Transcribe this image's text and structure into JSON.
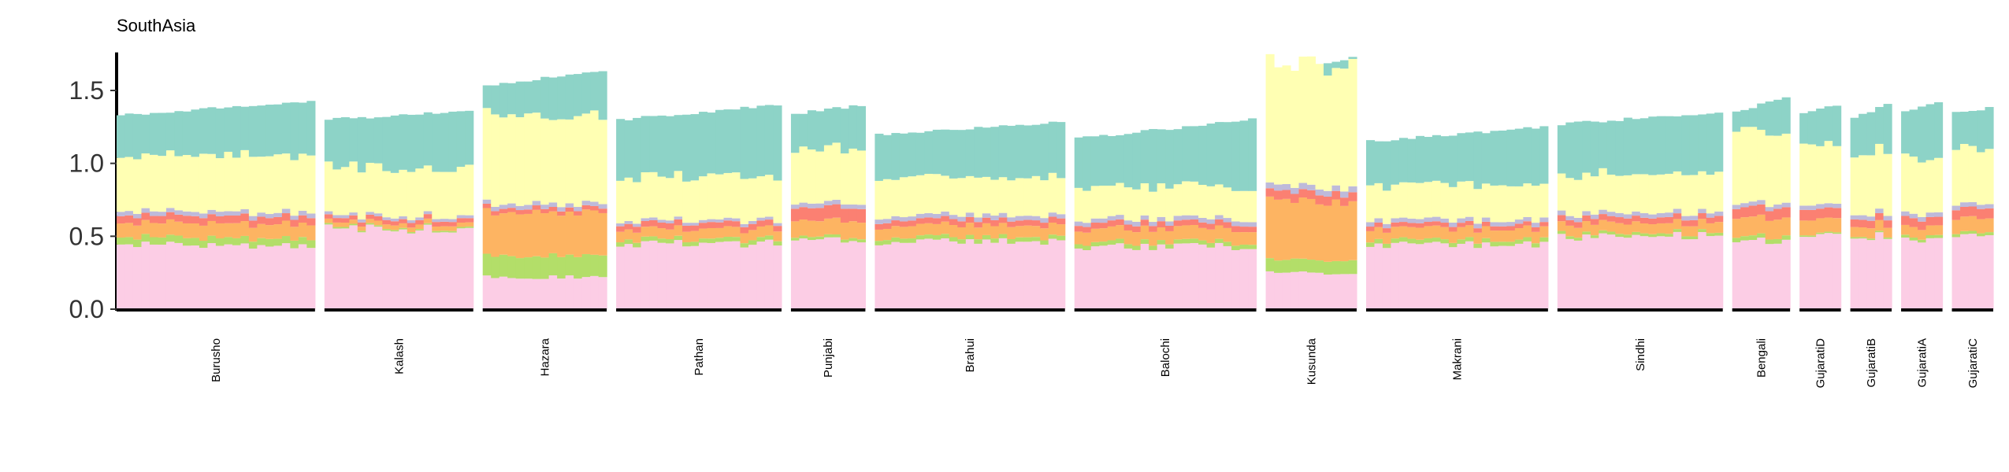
{
  "chart_data": {
    "type": "bar",
    "subtype": "stacked-admixture-by-group",
    "title": "SouthAsia",
    "xlabel": "",
    "ylabel": "",
    "ylim": [
      0,
      1.75
    ],
    "yticks": [
      0.0,
      0.5,
      1.0,
      1.5
    ],
    "ytick_labels": [
      "0.0",
      "0.5",
      "1.0",
      "1.5"
    ],
    "grid": false,
    "legend": "none",
    "components": [
      {
        "key": "pink",
        "color": "#FCCDE5"
      },
      {
        "key": "green",
        "color": "#B3DE69"
      },
      {
        "key": "orange",
        "color": "#FDB462"
      },
      {
        "key": "red",
        "color": "#FB8072"
      },
      {
        "key": "purple",
        "color": "#BEBADA"
      },
      {
        "key": "yellow",
        "color": "#FFFFB3"
      },
      {
        "key": "teal",
        "color": "#8DD3C7"
      }
    ],
    "groups": [
      {
        "name": "Burusho",
        "n": 24,
        "values": {
          "pink": 0.44,
          "green": 0.05,
          "orange": 0.1,
          "red": 0.05,
          "purple": 0.03,
          "yellow": 0.39,
          "teal": 0.33
        },
        "top_start": 1.33,
        "top_end": 1.43
      },
      {
        "name": "Kalash",
        "n": 18,
        "values": {
          "pink": 0.55,
          "green": 0.01,
          "orange": 0.03,
          "red": 0.03,
          "purple": 0.02,
          "yellow": 0.33,
          "teal": 0.37
        },
        "top_start": 1.3,
        "top_end": 1.36
      },
      {
        "name": "Hazara",
        "n": 15,
        "values": {
          "pink": 0.22,
          "green": 0.15,
          "orange": 0.3,
          "red": 0.03,
          "purple": 0.03,
          "yellow": 0.6,
          "teal": 0.3
        },
        "top_start": 1.53,
        "top_end": 1.64
      },
      {
        "name": "Pathan",
        "n": 20,
        "values": {
          "pink": 0.45,
          "green": 0.03,
          "orange": 0.07,
          "red": 0.04,
          "purple": 0.02,
          "yellow": 0.3,
          "teal": 0.42
        },
        "top_start": 1.3,
        "top_end": 1.4
      },
      {
        "name": "Punjabi",
        "n": 9,
        "values": {
          "pink": 0.48,
          "green": 0.02,
          "orange": 0.11,
          "red": 0.09,
          "purple": 0.03,
          "yellow": 0.37,
          "teal": 0.26
        },
        "top_start": 1.34,
        "top_end": 1.4
      },
      {
        "name": "Brahui",
        "n": 23,
        "values": {
          "pink": 0.46,
          "green": 0.03,
          "orange": 0.08,
          "red": 0.04,
          "purple": 0.03,
          "yellow": 0.26,
          "teal": 0.37
        },
        "top_start": 1.2,
        "top_end": 1.28
      },
      {
        "name": "Balochi",
        "n": 22,
        "values": {
          "pink": 0.43,
          "green": 0.03,
          "orange": 0.09,
          "red": 0.04,
          "purple": 0.03,
          "yellow": 0.22,
          "teal": 0.42
        },
        "top_start": 1.17,
        "top_end": 1.3
      },
      {
        "name": "Kusunda",
        "n": 11,
        "values": {
          "pink": 0.25,
          "green": 0.09,
          "orange": 0.4,
          "red": 0.06,
          "purple": 0.04,
          "yellow": 0.84,
          "teal": 0.06
        },
        "top_start": 1.58,
        "top_end": 1.73
      },
      {
        "name": "Makrani",
        "n": 22,
        "values": {
          "pink": 0.44,
          "green": 0.03,
          "orange": 0.08,
          "red": 0.03,
          "purple": 0.03,
          "yellow": 0.24,
          "teal": 0.35
        },
        "top_start": 1.15,
        "top_end": 1.25
      },
      {
        "name": "Sindhi",
        "n": 20,
        "values": {
          "pink": 0.5,
          "green": 0.02,
          "orange": 0.07,
          "red": 0.04,
          "purple": 0.03,
          "yellow": 0.27,
          "teal": 0.35
        },
        "top_start": 1.27,
        "top_end": 1.35
      },
      {
        "name": "Bengali",
        "n": 7,
        "values": {
          "pink": 0.47,
          "green": 0.03,
          "orange": 0.13,
          "red": 0.07,
          "purple": 0.03,
          "yellow": 0.5,
          "teal": 0.17
        },
        "top_start": 1.35,
        "top_end": 1.46
      },
      {
        "name": "GujaratiD",
        "n": 5,
        "values": {
          "pink": 0.52,
          "green": 0.01,
          "orange": 0.1,
          "red": 0.07,
          "purple": 0.03,
          "yellow": 0.42,
          "teal": 0.22
        },
        "top_start": 1.34,
        "top_end": 1.4
      },
      {
        "name": "GujaratiB",
        "n": 5,
        "values": {
          "pink": 0.5,
          "green": 0.01,
          "orange": 0.07,
          "red": 0.05,
          "purple": 0.03,
          "yellow": 0.42,
          "teal": 0.3
        },
        "top_start": 1.31,
        "top_end": 1.41
      },
      {
        "name": "GujaratiA",
        "n": 5,
        "values": {
          "pink": 0.47,
          "green": 0.02,
          "orange": 0.07,
          "red": 0.06,
          "purple": 0.03,
          "yellow": 0.38,
          "teal": 0.36
        },
        "top_start": 1.35,
        "top_end": 1.42
      },
      {
        "name": "GujaratiC",
        "n": 5,
        "values": {
          "pink": 0.5,
          "green": 0.02,
          "orange": 0.1,
          "red": 0.07,
          "purple": 0.03,
          "yellow": 0.38,
          "teal": 0.28
        },
        "top_start": 1.35,
        "top_end": 1.38
      }
    ]
  }
}
